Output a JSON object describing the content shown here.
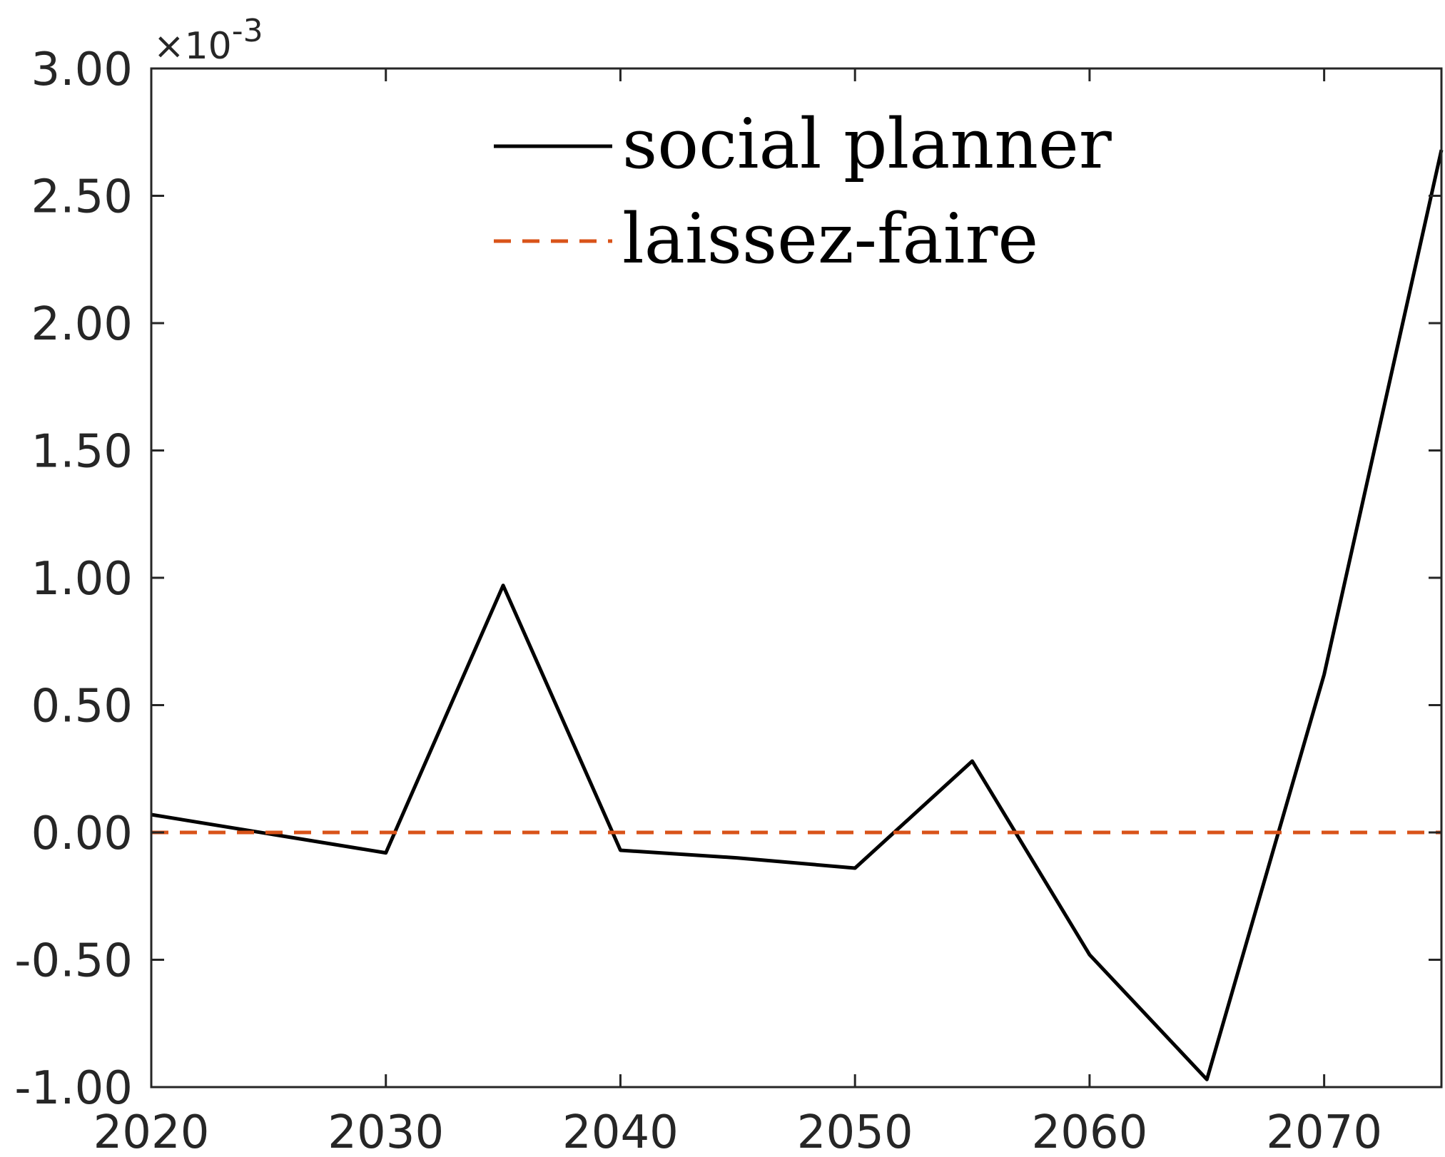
{
  "chart_data": {
    "type": "line",
    "title": "",
    "xlabel": "",
    "ylabel": "",
    "xlim": [
      2020,
      2075
    ],
    "ylim": [
      -0.001,
      0.003
    ],
    "y_scale_factor_label": {
      "prefix": "×10",
      "exponent": "-3"
    },
    "grid": false,
    "legend_position": "top-center",
    "x_ticks": [
      {
        "value": 2020,
        "label": "2020"
      },
      {
        "value": 2030,
        "label": "2030"
      },
      {
        "value": 2040,
        "label": "2040"
      },
      {
        "value": 2050,
        "label": "2050"
      },
      {
        "value": 2060,
        "label": "2060"
      },
      {
        "value": 2070,
        "label": "2070"
      }
    ],
    "y_ticks": [
      {
        "value": 0.003,
        "label": "3.00"
      },
      {
        "value": 0.0025,
        "label": "2.50"
      },
      {
        "value": 0.002,
        "label": "2.00"
      },
      {
        "value": 0.0015,
        "label": "1.50"
      },
      {
        "value": 0.001,
        "label": "1.00"
      },
      {
        "value": 0.0005,
        "label": "0.50"
      },
      {
        "value": 0.0,
        "label": "0.00"
      },
      {
        "value": -0.0005,
        "label": "-0.50"
      },
      {
        "value": -0.001,
        "label": "-1.00"
      }
    ],
    "series": [
      {
        "name": "social planner",
        "color": "#000000",
        "style": "solid",
        "x": [
          2020,
          2030,
          2035,
          2040,
          2045,
          2050,
          2055,
          2060,
          2065,
          2070,
          2075
        ],
        "y": [
          7e-05,
          -8e-05,
          0.00097,
          -7e-05,
          -0.0001,
          -0.00014,
          0.00028,
          -0.00048,
          -0.00097,
          0.00062,
          0.00268
        ]
      },
      {
        "name": "laissez-faire",
        "color": "#D95319",
        "style": "dashed",
        "x": [
          2020,
          2075
        ],
        "y": [
          0.0,
          0.0
        ]
      }
    ]
  }
}
